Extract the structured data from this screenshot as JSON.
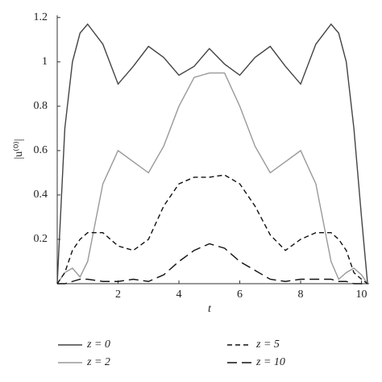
{
  "chart_data": {
    "type": "line",
    "x_label": "t",
    "y_label": "|u⁽⁰⁾|",
    "x": [
      0,
      0.25,
      0.5,
      0.75,
      1,
      1.5,
      2,
      2.5,
      3,
      3.5,
      4,
      4.5,
      5,
      5.5,
      6,
      6.5,
      7,
      7.5,
      8,
      8.5,
      9,
      9.25,
      9.5,
      9.75,
      10,
      10.2
    ],
    "series": [
      {
        "name": "z = 0",
        "color": "#444444",
        "dash": "none",
        "values": [
          0,
          0.7,
          1.0,
          1.13,
          1.17,
          1.08,
          0.9,
          0.98,
          1.07,
          1.02,
          0.94,
          0.98,
          1.06,
          0.99,
          0.94,
          1.02,
          1.07,
          0.98,
          0.9,
          1.08,
          1.17,
          1.13,
          1.0,
          0.7,
          0.3,
          0
        ]
      },
      {
        "name": "z = 2",
        "color": "#999999",
        "dash": "none",
        "values": [
          0,
          0.05,
          0.07,
          0.03,
          0.1,
          0.45,
          0.6,
          0.55,
          0.5,
          0.62,
          0.8,
          0.93,
          0.95,
          0.95,
          0.8,
          0.62,
          0.5,
          0.55,
          0.6,
          0.45,
          0.1,
          0.02,
          0.05,
          0.07,
          0.04,
          0
        ]
      },
      {
        "name": "z = 5",
        "color": "#111111",
        "dash": "6 4",
        "values": [
          0,
          0.05,
          0.15,
          0.2,
          0.23,
          0.23,
          0.17,
          0.15,
          0.2,
          0.35,
          0.45,
          0.48,
          0.48,
          0.49,
          0.45,
          0.35,
          0.22,
          0.15,
          0.2,
          0.23,
          0.23,
          0.2,
          0.15,
          0.05,
          0.02,
          0
        ]
      },
      {
        "name": "z = 10",
        "color": "#111111",
        "dash": "12 6",
        "values": [
          0,
          0,
          0.01,
          0.02,
          0.02,
          0.01,
          0.01,
          0.02,
          0.01,
          0.04,
          0.1,
          0.15,
          0.18,
          0.16,
          0.1,
          0.06,
          0.02,
          0.01,
          0.02,
          0.02,
          0.02,
          0.01,
          0.01,
          0,
          0,
          0
        ]
      }
    ],
    "xlim": [
      0,
      10.25
    ],
    "xticks": [
      2,
      4,
      6,
      8,
      10
    ],
    "ylim": [
      0,
      1.21
    ],
    "yticks": [
      0.2,
      0.4,
      0.6,
      0.8,
      1,
      1.2
    ],
    "grid": false
  }
}
